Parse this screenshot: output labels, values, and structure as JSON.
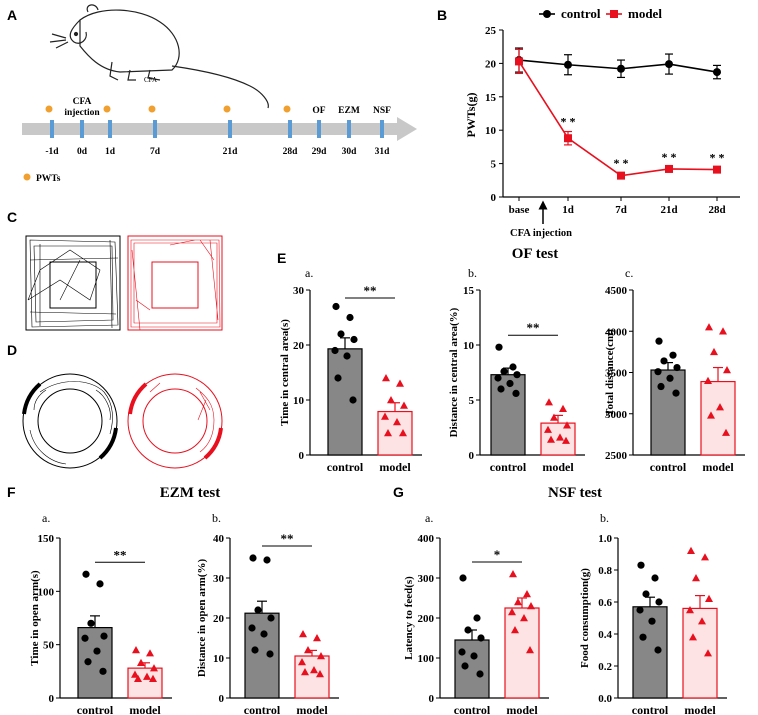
{
  "panel_labels": [
    "A",
    "B",
    "C",
    "D",
    "E",
    "F",
    "G"
  ],
  "panel_a": {
    "mouse_label": "CFA",
    "injection_label_line1": "CFA",
    "injection_label_line2": "injection",
    "timeline": [
      {
        "label": "-1d",
        "pwt": true
      },
      {
        "label": "0d",
        "pwt": false
      },
      {
        "label": "1d",
        "pwt": true
      },
      {
        "label": "7d",
        "pwt": true
      },
      {
        "label": "21d",
        "pwt": true
      },
      {
        "label": "28d",
        "pwt": true
      },
      {
        "label": "29d",
        "pwt": false,
        "test": "OF"
      },
      {
        "label": "30d",
        "pwt": false,
        "test": "EZM"
      },
      {
        "label": "31d",
        "pwt": false,
        "test": "NSF"
      }
    ],
    "legend_pwt": "PWTs",
    "colors": {
      "arrow": "#c8c8c8",
      "tick": "#5b9bd5",
      "dot": "#f0a030"
    }
  },
  "chart_data": [
    {
      "id": "B",
      "type": "line",
      "categories": [
        "base",
        "1d",
        "7d",
        "21d",
        "28d"
      ],
      "series": [
        {
          "name": "control",
          "color": "#000000",
          "values": [
            20.5,
            19.8,
            19.2,
            19.9,
            18.7
          ],
          "err": [
            1.8,
            1.5,
            1.3,
            1.5,
            1.0
          ]
        },
        {
          "name": "model",
          "color": "#e8101e",
          "values": [
            20.3,
            8.8,
            3.2,
            4.2,
            4.1
          ],
          "err": [
            1.8,
            1.0,
            0.4,
            0.3,
            0.3
          ]
        }
      ],
      "significance": [
        "",
        "* *",
        "* *",
        "* *",
        "* *"
      ],
      "annotation": "CFA injection",
      "ylabel": "PWTs(g)",
      "ylim": [
        0,
        25
      ],
      "yticks": [
        0,
        5,
        10,
        15,
        20,
        25
      ]
    },
    {
      "id": "E-a",
      "type": "bar",
      "panel": "E",
      "sub": "a.",
      "categories": [
        "control",
        "model"
      ],
      "values": [
        19.3,
        7.9
      ],
      "err": [
        2.0,
        1.6
      ],
      "points": [
        [
          27,
          25,
          22,
          21,
          19,
          18,
          14,
          10
        ],
        [
          14,
          13,
          10,
          9,
          7,
          6,
          4,
          4
        ]
      ],
      "ylabel": "Time in central area(s)",
      "ylim": [
        0,
        30
      ],
      "yticks": [
        0,
        10,
        20,
        30
      ],
      "sig": "**"
    },
    {
      "id": "E-b",
      "type": "bar",
      "panel": "E",
      "sub": "b.",
      "categories": [
        "control",
        "model"
      ],
      "values": [
        7.3,
        2.9
      ],
      "err": [
        0.6,
        0.7
      ],
      "points": [
        [
          9.8,
          8.0,
          7.6,
          7.3,
          7.0,
          6.5,
          6.0,
          5.6
        ],
        [
          4.8,
          4.2,
          3.4,
          2.7,
          2.3,
          1.6,
          1.4,
          1.3
        ]
      ],
      "ylabel": "Distance in central area(%)",
      "ylim": [
        0,
        15
      ],
      "yticks": [
        0,
        5,
        10,
        15
      ],
      "sig": "**"
    },
    {
      "id": "E-c",
      "type": "bar",
      "panel": "E",
      "sub": "c.",
      "categories": [
        "control",
        "model"
      ],
      "values": [
        3530,
        3390
      ],
      "err": [
        90,
        170
      ],
      "points": [
        [
          3880,
          3710,
          3640,
          3560,
          3510,
          3430,
          3330,
          3250
        ],
        [
          4050,
          4000,
          3750,
          3530,
          3400,
          3080,
          2980,
          2770
        ]
      ],
      "ylabel": "Total distance(cm)",
      "ylim": [
        2500,
        4500
      ],
      "yticks": [
        2500,
        3000,
        3500,
        4000,
        4500
      ],
      "sig": ""
    },
    {
      "id": "F-a",
      "type": "bar",
      "panel": "F",
      "sub": "a.",
      "categories": [
        "control",
        "model"
      ],
      "values": [
        66,
        28
      ],
      "err": [
        11,
        5
      ],
      "points": [
        [
          116,
          107,
          70,
          58,
          56,
          44,
          34,
          25
        ],
        [
          45,
          42,
          33,
          28,
          22,
          20,
          18,
          18
        ]
      ],
      "ylabel": "Time in open arm(s)",
      "ylim": [
        0,
        150
      ],
      "yticks": [
        0,
        50,
        100,
        150
      ],
      "sig": "**"
    },
    {
      "id": "F-b",
      "type": "bar",
      "panel": "F",
      "sub": "b.",
      "categories": [
        "control",
        "model"
      ],
      "values": [
        21.2,
        10.5
      ],
      "err": [
        3.0,
        1.4
      ],
      "points": [
        [
          35,
          34.5,
          22,
          20,
          17.5,
          16,
          12,
          11
        ],
        [
          16,
          15,
          12,
          10.5,
          9,
          7,
          6.5,
          6
        ]
      ],
      "ylabel": "Distance in open arm(%)",
      "ylim": [
        0,
        40
      ],
      "yticks": [
        0,
        10,
        20,
        30,
        40
      ],
      "sig": "**"
    },
    {
      "id": "G-a",
      "type": "bar",
      "panel": "G",
      "sub": "a.",
      "categories": [
        "control",
        "model"
      ],
      "values": [
        145,
        225
      ],
      "err": [
        25,
        25
      ],
      "points": [
        [
          300,
          200,
          170,
          150,
          115,
          105,
          80,
          60
        ],
        [
          310,
          260,
          240,
          230,
          215,
          200,
          170,
          120
        ]
      ],
      "ylabel": "Latency to feed(s)",
      "ylim": [
        0,
        400
      ],
      "yticks": [
        0,
        100,
        200,
        300,
        400
      ],
      "sig": "*"
    },
    {
      "id": "G-b",
      "type": "bar",
      "panel": "G",
      "sub": "b.",
      "categories": [
        "control",
        "model"
      ],
      "values": [
        0.57,
        0.56
      ],
      "err": [
        0.06,
        0.08
      ],
      "points": [
        [
          0.83,
          0.75,
          0.65,
          0.6,
          0.55,
          0.48,
          0.38,
          0.3
        ],
        [
          0.92,
          0.88,
          0.75,
          0.62,
          0.55,
          0.48,
          0.38,
          0.28
        ]
      ],
      "ylabel": "Food consumption(g)",
      "ylim": [
        0,
        1.0
      ],
      "yticks": [
        0.0,
        0.2,
        0.4,
        0.6,
        0.8,
        1.0
      ],
      "sig": ""
    }
  ],
  "test_titles": {
    "E": "OF test",
    "F": "EZM test",
    "G": "NSF test"
  },
  "colors": {
    "control_bar": "#878787",
    "model_bar": "#fde3e3",
    "model_edge": "#e8101e",
    "model_point": "#e8101e",
    "control_point": "#000000",
    "track_control": "#000000",
    "track_model": "#e8101e"
  }
}
